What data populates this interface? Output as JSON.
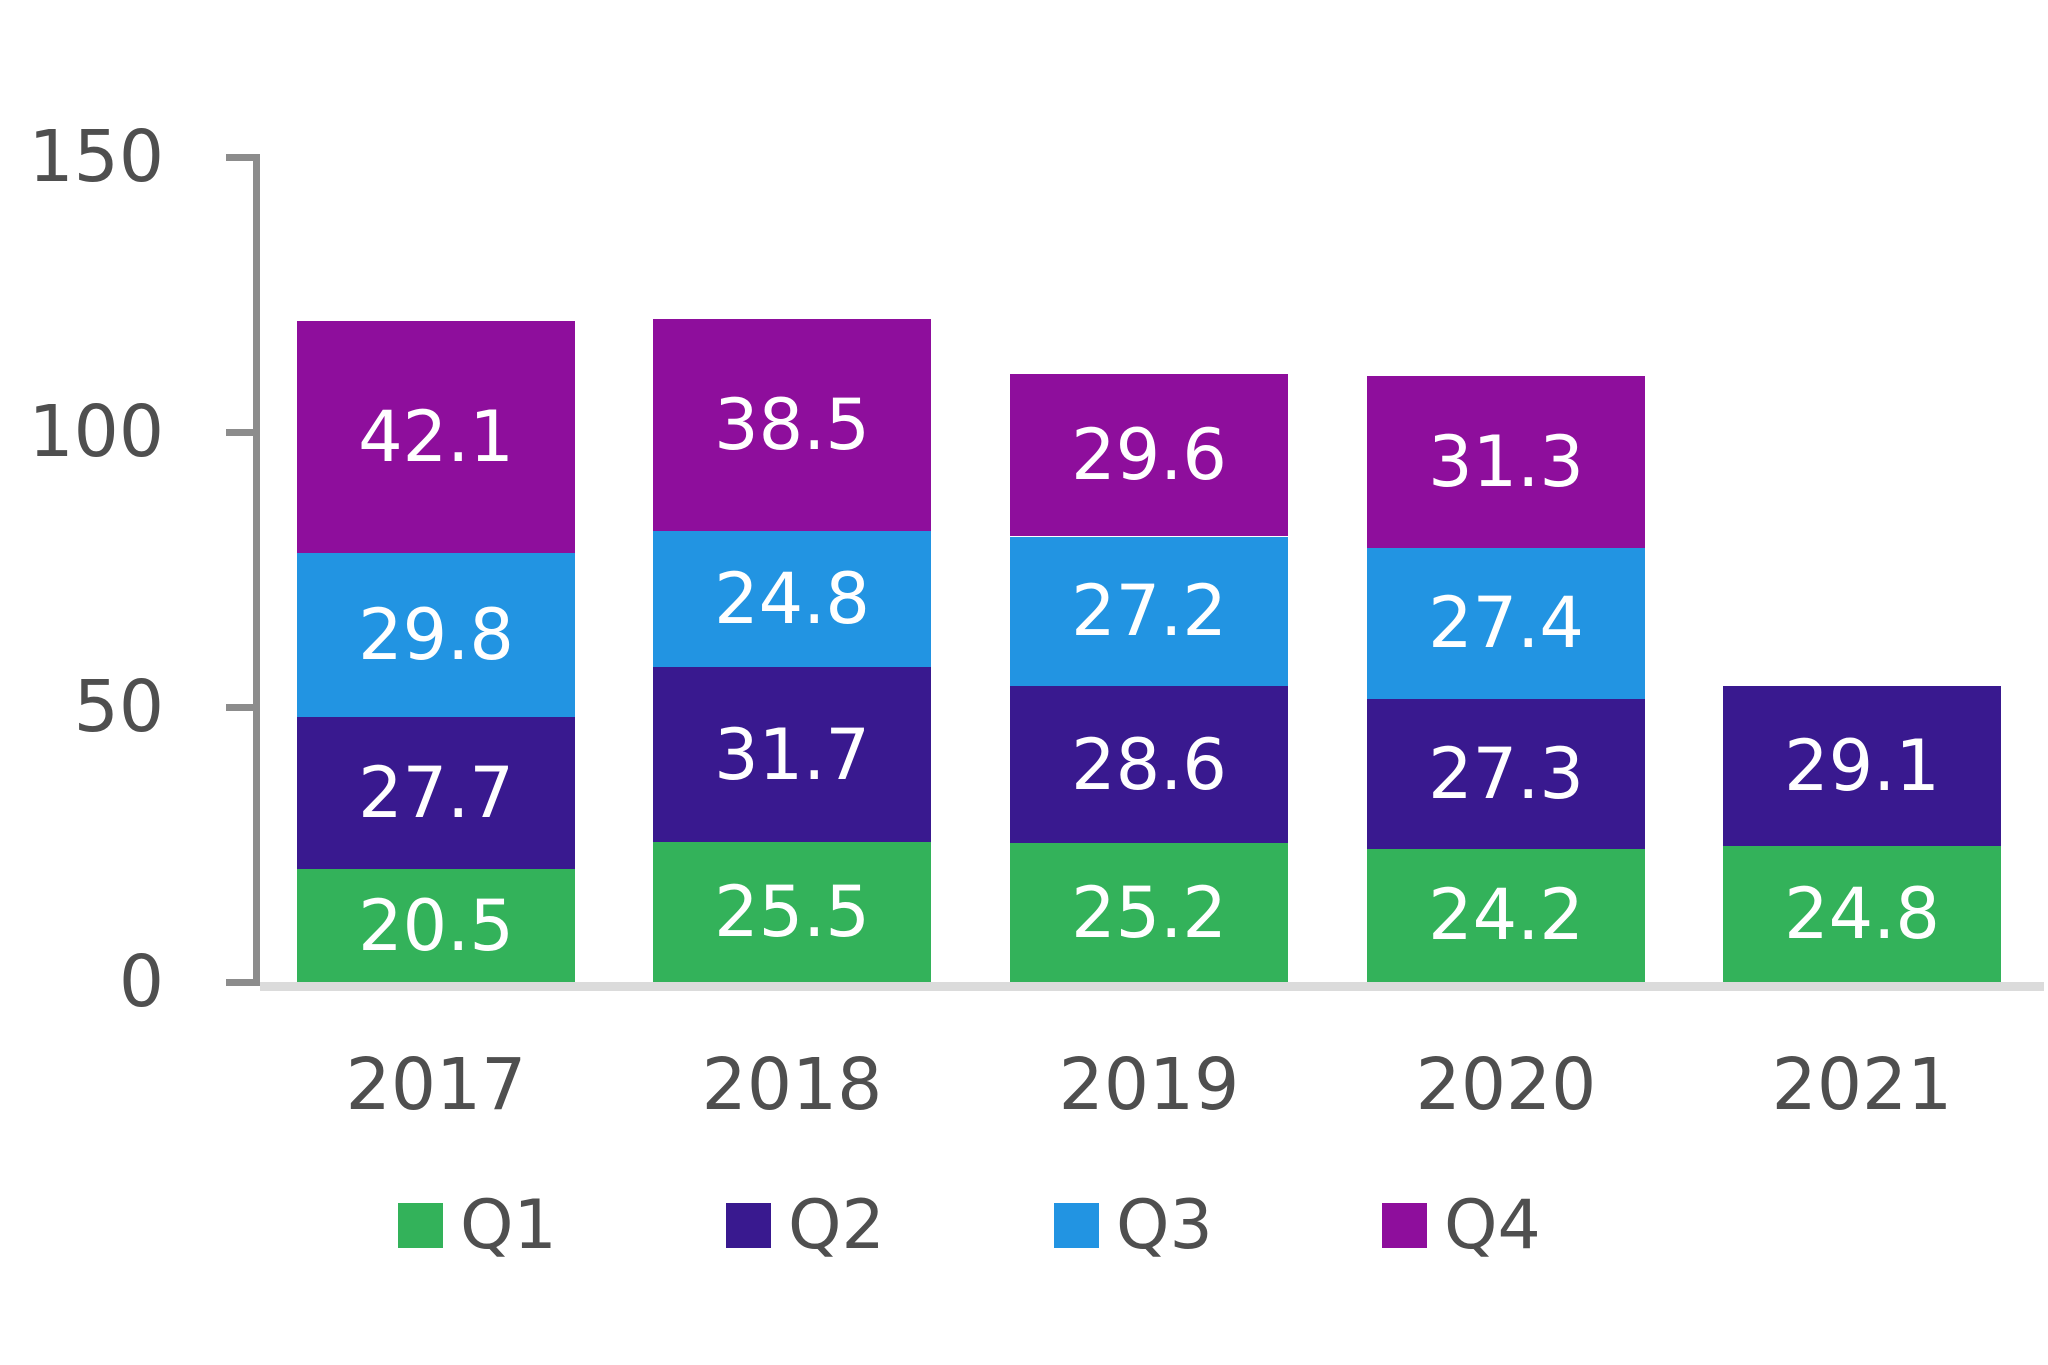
{
  "chart_data": {
    "type": "bar",
    "stacked": true,
    "title": "",
    "xlabel": "",
    "ylabel": "",
    "categories": [
      "2017",
      "2018",
      "2019",
      "2020",
      "2021"
    ],
    "series": [
      {
        "name": "Q1",
        "color": "#33B25A",
        "values": [
          20.5,
          25.5,
          25.2,
          24.2,
          24.8
        ]
      },
      {
        "name": "Q2",
        "color": "#39198F",
        "values": [
          27.7,
          31.7,
          28.6,
          27.3,
          29.1
        ]
      },
      {
        "name": "Q3",
        "color": "#2294E2",
        "values": [
          29.8,
          24.8,
          27.2,
          27.4,
          null
        ]
      },
      {
        "name": "Q4",
        "color": "#8E0E9C",
        "values": [
          42.1,
          38.5,
          29.6,
          31.3,
          null
        ]
      }
    ],
    "yaxis": {
      "range": [
        0,
        150
      ],
      "tick_values": [
        0,
        50,
        100,
        150
      ],
      "tick_labels": [
        "0",
        "50",
        "100",
        "150"
      ]
    },
    "grid": false,
    "data_labels": true,
    "legend_position": "bottom",
    "colors": {
      "axis_line": "#8C8C8C",
      "baseline": "#DBDBDB",
      "tick_text": "#4F4F4F",
      "value_text": "#FFFFFF",
      "background": "#FFFFFF"
    }
  }
}
